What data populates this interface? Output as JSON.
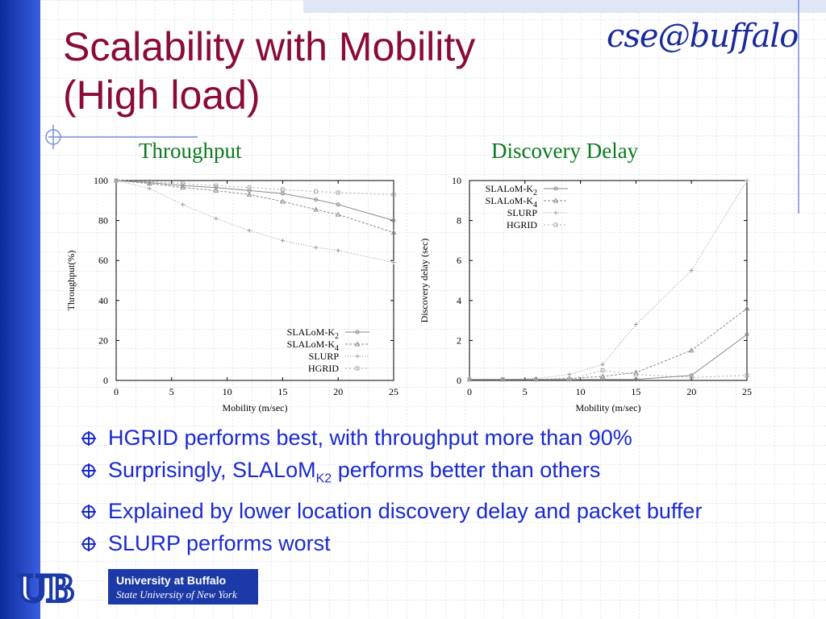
{
  "slide": {
    "title_line1": "Scalability with Mobility",
    "title_line2": "(High load)",
    "logo_text": "cse@buffalo",
    "university_line1": "University at Buffalo",
    "university_line2": "State University of New York",
    "ub_logo_text": "UB",
    "colors": {
      "title": "#8a0a3a",
      "bullet": "#1a2ad0",
      "chart_title": "#0a7a1a",
      "accent_bar": "#1b3aa8"
    }
  },
  "bullets": [
    {
      "text": "HGRID performs best, with throughput more than 90%"
    },
    {
      "pre": "Surprisingly, SLALoM",
      "sub": "K2",
      "post": " performs better than others"
    },
    {
      "text": "Explained by lower location discovery delay and packet buffer"
    },
    {
      "text": "SLURP performs worst"
    }
  ],
  "chart_data": [
    {
      "type": "line",
      "title": "Throughput",
      "xlabel": "Mobility (m/sec)",
      "ylabel": "Throughput(%)",
      "xlim": [
        0,
        25
      ],
      "ylim": [
        0,
        100
      ],
      "xticks": [
        "0",
        "5",
        "10",
        "15",
        "20",
        "25"
      ],
      "yticks": [
        "0",
        "20",
        "40",
        "60",
        "80",
        "100"
      ],
      "legend_position": "bottom-right",
      "grid": false,
      "series": [
        {
          "name": "SLALoM-K",
          "sub": "2",
          "x": [
            0,
            3,
            6,
            9,
            12,
            15,
            18,
            20,
            25
          ],
          "y": [
            100,
            99,
            97.5,
            96.5,
            95,
            93.5,
            90.5,
            88,
            80
          ]
        },
        {
          "name": "SLALoM-K",
          "sub": "4",
          "x": [
            0,
            3,
            6,
            9,
            12,
            15,
            18,
            20,
            25
          ],
          "y": [
            100,
            98.5,
            96.5,
            95,
            93,
            89.5,
            85.5,
            83,
            74
          ]
        },
        {
          "name": "SLURP",
          "sub": "",
          "x": [
            0,
            3,
            6,
            9,
            12,
            15,
            18,
            20,
            25
          ],
          "y": [
            100,
            96,
            88,
            81,
            75,
            70,
            66.5,
            65,
            59
          ]
        },
        {
          "name": "HGRID",
          "sub": "",
          "x": [
            0,
            3,
            6,
            9,
            12,
            15,
            18,
            20,
            25
          ],
          "y": [
            100,
            99.5,
            98.5,
            97.5,
            96.5,
            95.5,
            94.5,
            94,
            93
          ]
        }
      ]
    },
    {
      "type": "line",
      "title": "Discovery Delay",
      "xlabel": "Mobility (m/sec)",
      "ylabel": "Discovery delay (sec)",
      "xlim": [
        0,
        25
      ],
      "ylim": [
        0,
        10
      ],
      "xticks": [
        "0",
        "5",
        "10",
        "15",
        "20",
        "25"
      ],
      "yticks": [
        "0",
        "2",
        "4",
        "6",
        "8",
        "10"
      ],
      "legend_position": "top-left",
      "grid": false,
      "series": [
        {
          "name": "SLALoM-K",
          "sub": "2",
          "x": [
            0,
            3,
            6,
            9,
            12,
            15,
            20,
            25
          ],
          "y": [
            0.05,
            0.05,
            0.05,
            0.05,
            0.05,
            0.05,
            0.25,
            2.3
          ]
        },
        {
          "name": "SLALoM-K",
          "sub": "4",
          "x": [
            0,
            3,
            6,
            9,
            12,
            15,
            20,
            25
          ],
          "y": [
            0.05,
            0.05,
            0.05,
            0.1,
            0.2,
            0.4,
            1.5,
            3.6
          ]
        },
        {
          "name": "SLURP",
          "sub": "",
          "x": [
            0,
            3,
            6,
            9,
            12,
            15,
            20,
            25
          ],
          "y": [
            0.05,
            0.05,
            0.1,
            0.3,
            0.8,
            2.8,
            5.5,
            10
          ]
        },
        {
          "name": "HGRID",
          "sub": "",
          "x": [
            0,
            3,
            6,
            9,
            12,
            15,
            20,
            25
          ],
          "y": [
            0.05,
            0.05,
            0.05,
            0.05,
            0.5,
            0.3,
            0.15,
            0.25
          ]
        }
      ]
    }
  ]
}
